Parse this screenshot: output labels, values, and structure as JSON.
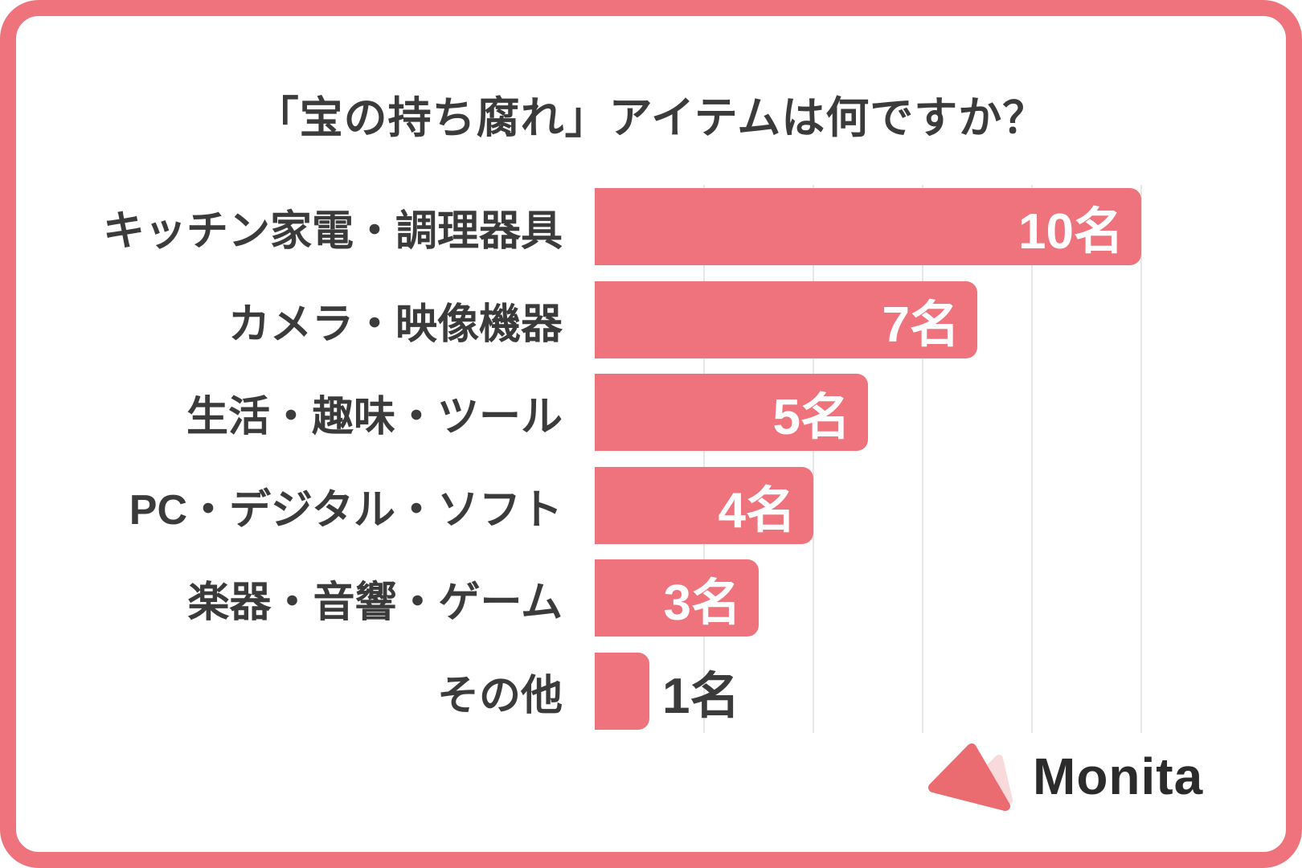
{
  "title": "「宝の持ち腐れ」アイテムは何ですか？",
  "chart_data": {
    "type": "bar",
    "orientation": "horizontal",
    "title": "「宝の持ち腐れ」アイテムは何ですか？",
    "categories": [
      "キッチン家電・調理器具",
      "カメラ・映像機器",
      "生活・趣味・ツール",
      "PC・デジタル・ソフト",
      "楽器・音響・ゲーム",
      "その他"
    ],
    "values": [
      10,
      7,
      5,
      4,
      3,
      1
    ],
    "unit_suffix": "名",
    "value_labels": [
      "10名",
      "7名",
      "5名",
      "4名",
      "3名",
      "1名"
    ],
    "xlim": [
      0,
      10
    ],
    "gridline_values": [
      2,
      4,
      6,
      8,
      10
    ],
    "grid": true,
    "legend": false,
    "bar_color": "#ee737c",
    "grid_color": "#e6e6e6",
    "category_label_color": "#3b3b3b",
    "value_label_color_inside": "#ffffff",
    "value_label_color_outside": "#3b3b3b"
  },
  "frame": {
    "border_color": "#ee737c"
  },
  "logo": {
    "text": "Monita",
    "text_color": "#2b2b2b",
    "triangle_main_color": "#ea6b70",
    "triangle_back_color": "#f9dada"
  }
}
